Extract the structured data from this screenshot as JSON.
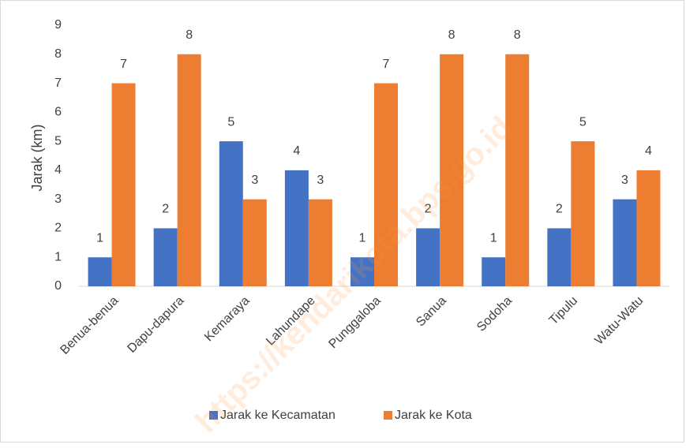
{
  "chart_data": {
    "type": "bar",
    "y_label": "Jarak (km)",
    "watermark": "https://kendarikota.bps.go.id",
    "categories": [
      "Benua-benua",
      "Dapu-dapura",
      "Kemaraya",
      "Lahundape",
      "Punggaloba",
      "Sanua",
      "Sodoha",
      "Tipulu",
      "Watu-Watu"
    ],
    "series": [
      {
        "name": "Jarak ke Kecamatan",
        "color": "#4472c4",
        "values": [
          1,
          2,
          5,
          4,
          1,
          2,
          1,
          2,
          3
        ]
      },
      {
        "name": "Jarak ke Kota",
        "color": "#ed7d31",
        "values": [
          7,
          8,
          3,
          3,
          7,
          8,
          8,
          5,
          4
        ]
      }
    ],
    "ylim": [
      0,
      9
    ],
    "yticks": [
      0,
      1,
      2,
      3,
      4,
      5,
      6,
      7,
      8,
      9
    ],
    "grid": false,
    "legend": "bottom"
  }
}
